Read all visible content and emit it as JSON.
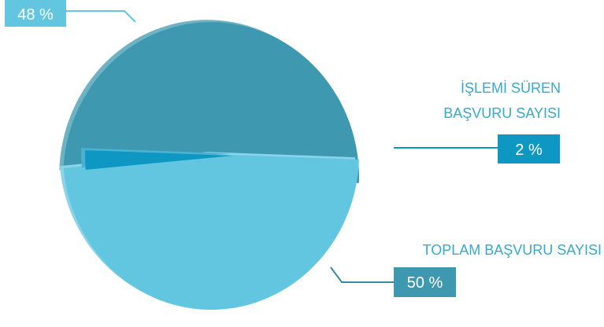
{
  "chart_data": {
    "type": "pie",
    "title": "",
    "slices": [
      {
        "label": "",
        "value": 48,
        "display": "48 %",
        "color": "#62c6e1"
      },
      {
        "label": "İŞLEMİ SÜREN BAŞVURU SAYISI",
        "label_lines": [
          "İŞLEMİ SÜREN",
          "BAŞVURU SAYISI"
        ],
        "value": 2,
        "display": "2 %",
        "color": "#0f97c4"
      },
      {
        "label": "TOPLAM BAŞVURU SAYISI",
        "label_lines": [
          "TOPLAM BAŞVURU SAYISI"
        ],
        "value": 50,
        "display": "50 %",
        "color": "#3e99b0"
      }
    ],
    "legend": "none"
  }
}
